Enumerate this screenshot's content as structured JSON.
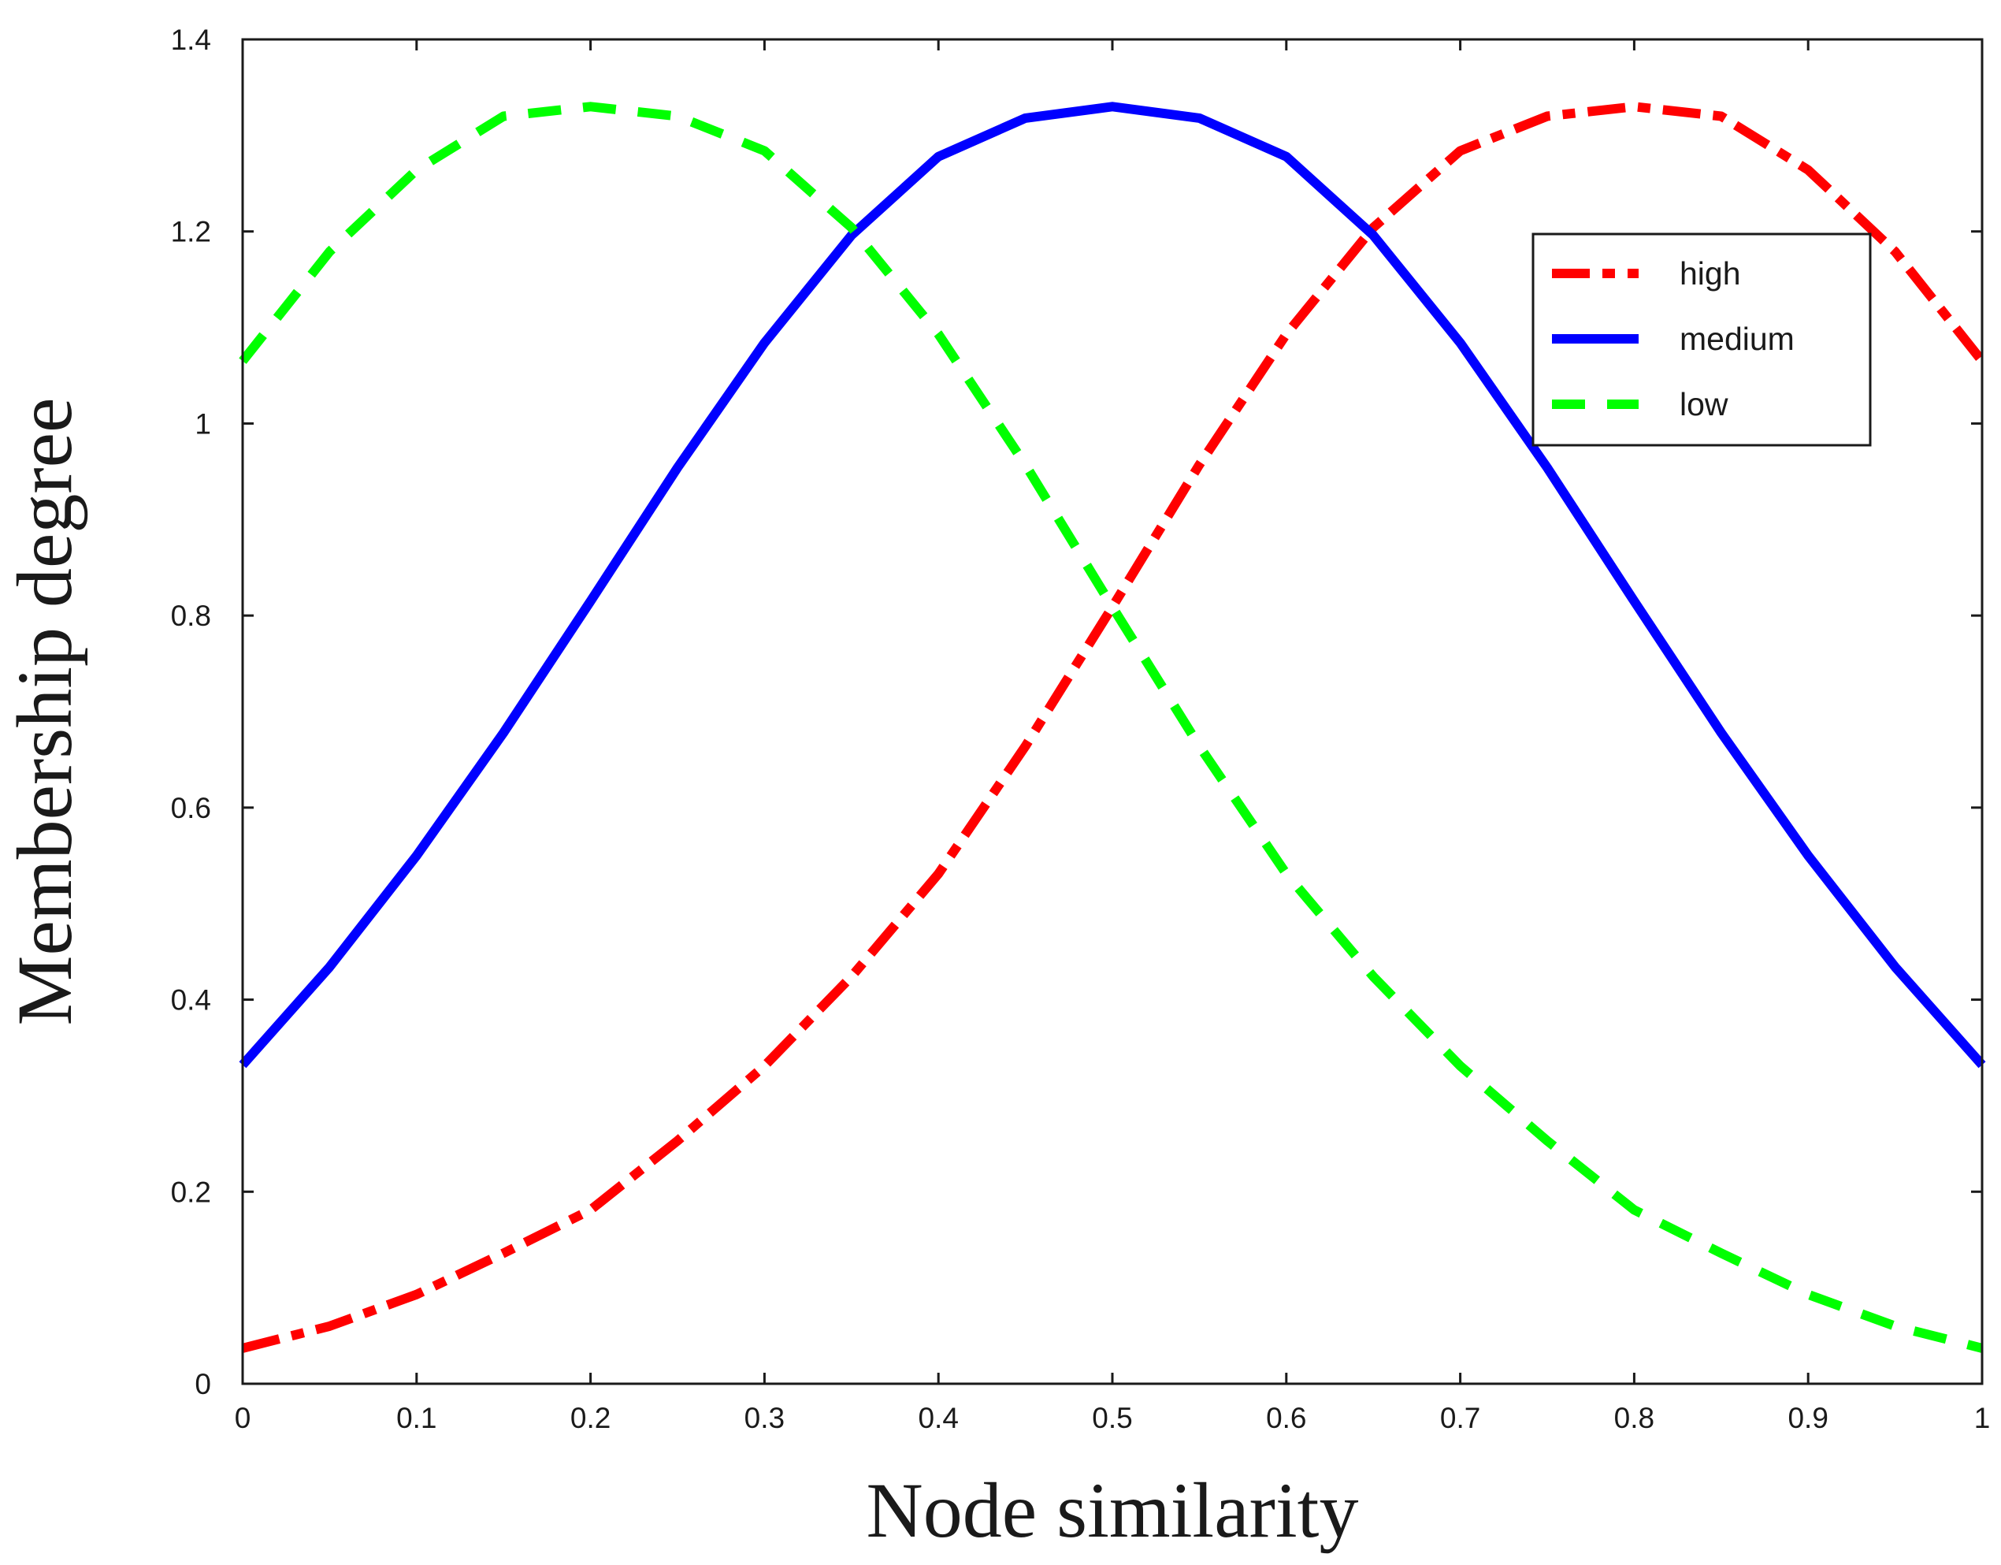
{
  "chart_data": {
    "type": "line",
    "title": "",
    "xlabel": "Node similarity",
    "ylabel": "Membership degree",
    "xlim": [
      0,
      1
    ],
    "ylim": [
      0,
      1.4
    ],
    "x_ticks": [
      0,
      0.1,
      0.2,
      0.3,
      0.4,
      0.5,
      0.6,
      0.7,
      0.8,
      0.9,
      1
    ],
    "x_tick_labels": [
      "0",
      "0.1",
      "0.2",
      "0.3",
      "0.4",
      "0.5",
      "0.6",
      "0.7",
      "0.8",
      "0.9",
      "1"
    ],
    "y_ticks": [
      0,
      0.2,
      0.4,
      0.6,
      0.8,
      1,
      1.2,
      1.4
    ],
    "y_tick_labels": [
      "0",
      "0.2",
      "0.4",
      "0.6",
      "0.8",
      "1",
      "1.2",
      "1.4"
    ],
    "grid": false,
    "legend_position": "top-right",
    "x": [
      0,
      0.05,
      0.1,
      0.15,
      0.2,
      0.25,
      0.3,
      0.35,
      0.4,
      0.45,
      0.5,
      0.55,
      0.6,
      0.65,
      0.7,
      0.75,
      0.8,
      0.85,
      0.9,
      0.95,
      1
    ],
    "series": [
      {
        "name": "high",
        "color": "#ff0000",
        "style": "dash-dot",
        "values": [
          0.037,
          0.06,
          0.093,
          0.136,
          0.181,
          0.253,
          0.331,
          0.424,
          0.531,
          0.664,
          0.809,
          0.957,
          1.093,
          1.204,
          1.284,
          1.32,
          1.33,
          1.32,
          1.264,
          1.179,
          1.065
        ]
      },
      {
        "name": "medium",
        "color": "#0000ff",
        "style": "solid",
        "values": [
          0.332,
          0.434,
          0.55,
          0.678,
          0.815,
          0.954,
          1.084,
          1.196,
          1.278,
          1.318,
          1.33,
          1.318,
          1.278,
          1.196,
          1.084,
          0.954,
          0.815,
          0.678,
          0.55,
          0.434,
          0.332
        ]
      },
      {
        "name": "low",
        "color": "#00ff00",
        "style": "dashed",
        "values": [
          1.065,
          1.179,
          1.264,
          1.32,
          1.33,
          1.32,
          1.284,
          1.204,
          1.093,
          0.957,
          0.809,
          0.664,
          0.531,
          0.424,
          0.331,
          0.253,
          0.181,
          0.136,
          0.093,
          0.06,
          0.037
        ]
      }
    ]
  }
}
